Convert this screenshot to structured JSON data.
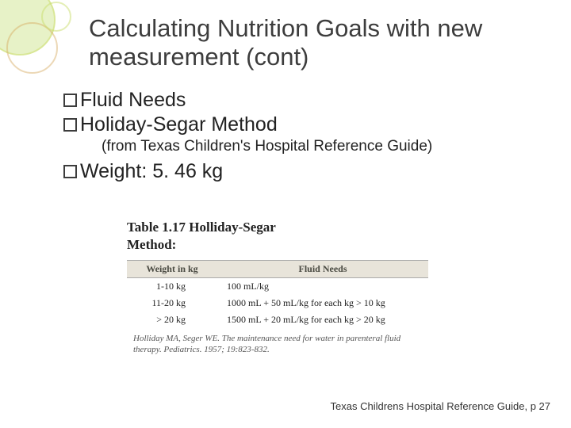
{
  "title": "Calculating Nutrition Goals with new measurement (cont)",
  "bullets": {
    "b1": "Fluid Needs",
    "b2": "Holiday-Segar Method",
    "b2_sub": "(from Texas Children's Hospital Reference Guide)",
    "b3": "Weight: 5. 46 kg"
  },
  "table": {
    "caption1": "Table 1.17 Holliday-Segar",
    "caption2": "Method:",
    "header": {
      "col1": "Weight in kg",
      "col2": "Fluid Needs"
    },
    "rows": [
      {
        "w": "1-10 kg",
        "f": "100 mL/kg"
      },
      {
        "w": "11-20 kg",
        "f": "1000 mL + 50 mL/kg for each kg > 10 kg"
      },
      {
        "w": "> 20 kg",
        "f": "1500 mL + 20 mL/kg for each kg > 20 kg"
      }
    ],
    "citation": "Holliday MA, Seger WE. The maintenance need for water in parenteral fluid therapy. Pediatrics. 1957; 19:823-832."
  },
  "footer": "Texas Childrens Hospital Reference Guide, p 27"
}
